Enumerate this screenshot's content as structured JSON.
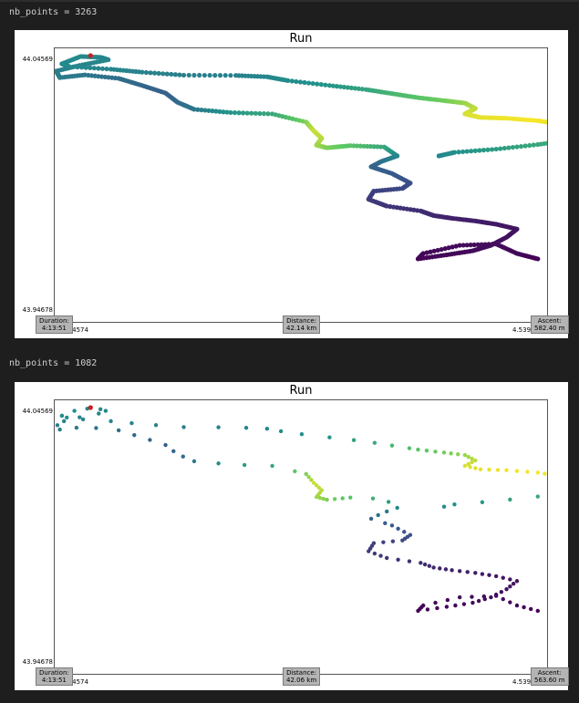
{
  "outputs": [
    {
      "label": "nb_points = 3263",
      "title": "Run",
      "y_top_tick": "44.04569",
      "y_bottom_tick": "43.94678",
      "x_left_tick": "4.44574",
      "x_right_tick": "4.53926",
      "duration_label": "Duration:",
      "duration_value": "4:13:51",
      "distance_label": "Distance:",
      "distance_value": "42.14 km",
      "ascent_label": "Ascent:",
      "ascent_value": "582.40 m",
      "style": "line"
    },
    {
      "label": "nb_points = 1082",
      "title": "Run",
      "y_top_tick": "44.04569",
      "y_bottom_tick": "43.94678",
      "x_left_tick": "4.44574",
      "x_right_tick": "4.53926",
      "duration_label": "Duration:",
      "duration_value": "4:13:51",
      "distance_label": "Distance:",
      "distance_value": "42.06 km",
      "ascent_label": "Ascent:",
      "ascent_value": "563.60 m",
      "style": "dots"
    }
  ],
  "chart_data": {
    "type": "scatter",
    "x_range": [
      4.44574,
      4.53926
    ],
    "y_range": [
      43.94678,
      44.04569
    ],
    "colormap": "viridis",
    "start_marker_color": "#cc1f1f",
    "track": [
      [
        4.4466,
        44.041,
        0.48
      ],
      [
        4.4502,
        44.0437,
        0.47
      ],
      [
        4.454,
        44.0434,
        0.46
      ],
      [
        4.4555,
        44.0425,
        0.46
      ],
      [
        4.45,
        44.0404,
        0.45
      ],
      [
        4.4455,
        44.0383,
        0.43
      ],
      [
        4.4462,
        44.0359,
        0.42
      ],
      [
        4.451,
        44.0369,
        0.4
      ],
      [
        4.4575,
        44.0356,
        0.36
      ],
      [
        4.462,
        44.033,
        0.33
      ],
      [
        4.4665,
        44.0302,
        0.31
      ],
      [
        4.4688,
        44.0268,
        0.34
      ],
      [
        4.472,
        44.0242,
        0.4
      ],
      [
        4.479,
        44.023,
        0.52
      ],
      [
        4.487,
        44.0225,
        0.6
      ],
      [
        4.4935,
        44.0195,
        0.8
      ],
      [
        4.495,
        44.0162,
        0.92
      ],
      [
        4.4965,
        44.0135,
        0.9
      ],
      [
        4.4955,
        44.011,
        0.86
      ],
      [
        4.4975,
        44.01,
        0.8
      ],
      [
        4.502,
        44.0108,
        0.72
      ],
      [
        4.5085,
        44.0103,
        0.6
      ],
      [
        4.511,
        44.007,
        0.46
      ],
      [
        4.508,
        44.005,
        0.38
      ],
      [
        4.506,
        44.003,
        0.32
      ],
      [
        4.51,
        44.0005,
        0.28
      ],
      [
        4.5135,
        43.997,
        0.25
      ],
      [
        4.512,
        43.995,
        0.22
      ],
      [
        4.5065,
        43.994,
        0.2
      ],
      [
        4.5055,
        43.991,
        0.18
      ],
      [
        4.509,
        43.9885,
        0.16
      ],
      [
        4.5155,
        43.9867,
        0.14
      ],
      [
        4.518,
        43.985,
        0.12
      ],
      [
        4.5215,
        43.984,
        0.1
      ],
      [
        4.526,
        43.983,
        0.09
      ],
      [
        4.53,
        43.9818,
        0.07
      ],
      [
        4.534,
        43.98,
        0.06
      ],
      [
        4.532,
        43.977,
        0.05
      ],
      [
        4.529,
        43.974,
        0.04
      ],
      [
        4.5255,
        43.972,
        0.03
      ],
      [
        4.5205,
        43.9705,
        0.02
      ],
      [
        4.515,
        43.969,
        0.01
      ],
      [
        4.516,
        43.971,
        0.02
      ],
      [
        4.523,
        43.974,
        0.03
      ],
      [
        4.53,
        43.9745,
        0.04
      ],
      [
        4.534,
        43.971,
        0.02
      ],
      [
        4.538,
        43.969,
        0.0
      ]
    ],
    "return_track": [
      [
        4.538,
        43.969,
        0.0
      ],
      [
        4.537,
        43.97,
        0.02
      ]
    ],
    "lower_route": [
      [
        4.4466,
        44.041,
        0.48
      ],
      [
        4.448,
        44.04,
        0.47
      ],
      [
        4.456,
        44.039,
        0.45
      ],
      [
        4.462,
        44.0379,
        0.44
      ],
      [
        4.47,
        44.0368,
        0.43
      ],
      [
        4.48,
        44.0367,
        0.44
      ],
      [
        4.486,
        44.0362,
        0.46
      ],
      [
        4.49,
        44.0348,
        0.48
      ],
      [
        4.498,
        44.033,
        0.52
      ],
      [
        4.505,
        44.0315,
        0.58
      ],
      [
        4.51,
        44.03,
        0.66
      ],
      [
        4.515,
        44.0285,
        0.72
      ],
      [
        4.52,
        44.0274,
        0.78
      ],
      [
        4.524,
        44.0265,
        0.84
      ],
      [
        4.526,
        44.0245,
        0.9
      ],
      [
        4.524,
        44.0225,
        0.94
      ],
      [
        4.527,
        44.0212,
        0.96
      ],
      [
        4.532,
        44.0209,
        0.98
      ],
      [
        4.538,
        44.02,
        0.99
      ],
      [
        4.542,
        44.0188,
        0.96
      ],
      [
        4.544,
        44.017,
        0.92
      ],
      [
        4.548,
        44.0175,
        0.88
      ],
      [
        4.552,
        44.0173,
        0.84
      ],
      [
        4.556,
        44.016,
        0.78
      ],
      [
        4.552,
        44.014,
        0.72
      ],
      [
        4.544,
        44.0128,
        0.66
      ],
      [
        4.538,
        44.0112,
        0.6
      ],
      [
        4.53,
        44.0095,
        0.55
      ],
      [
        4.522,
        44.0083,
        0.5
      ],
      [
        4.519,
        44.007,
        0.46
      ]
    ]
  }
}
